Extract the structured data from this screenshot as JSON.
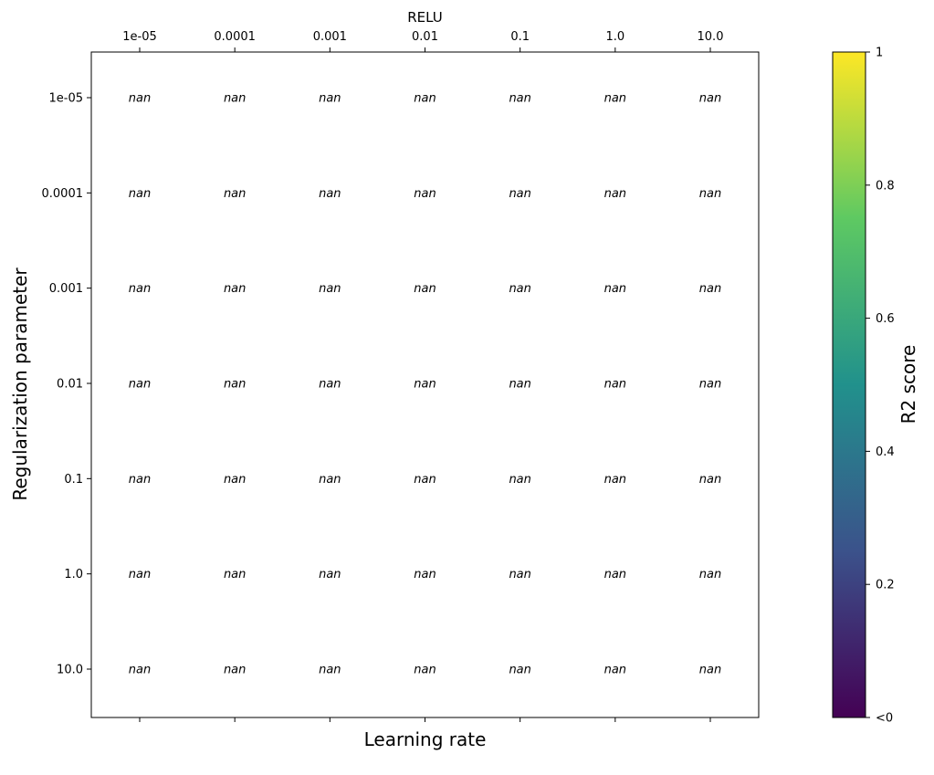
{
  "chart_data": {
    "type": "heatmap",
    "title": "RELU",
    "xlabel": "Learning rate",
    "ylabel": "Regularization parameter",
    "x_categories": [
      "1e-05",
      "0.0001",
      "0.001",
      "0.01",
      "0.1",
      "1.0",
      "10.0"
    ],
    "y_categories": [
      "1e-05",
      "0.0001",
      "0.001",
      "0.01",
      "0.1",
      "1.0",
      "10.0"
    ],
    "values": [
      [
        "nan",
        "nan",
        "nan",
        "nan",
        "nan",
        "nan",
        "nan"
      ],
      [
        "nan",
        "nan",
        "nan",
        "nan",
        "nan",
        "nan",
        "nan"
      ],
      [
        "nan",
        "nan",
        "nan",
        "nan",
        "nan",
        "nan",
        "nan"
      ],
      [
        "nan",
        "nan",
        "nan",
        "nan",
        "nan",
        "nan",
        "nan"
      ],
      [
        "nan",
        "nan",
        "nan",
        "nan",
        "nan",
        "nan",
        "nan"
      ],
      [
        "nan",
        "nan",
        "nan",
        "nan",
        "nan",
        "nan",
        "nan"
      ],
      [
        "nan",
        "nan",
        "nan",
        "nan",
        "nan",
        "nan",
        "nan"
      ]
    ],
    "x_tick_position": "top",
    "grid": false,
    "colorbar": {
      "label": "R2 score",
      "colormap": "viridis",
      "range": [
        0,
        1
      ],
      "ticks": [
        {
          "value": 0,
          "label": "<0"
        },
        {
          "value": 0.2,
          "label": "0.2"
        },
        {
          "value": 0.4,
          "label": "0.4"
        },
        {
          "value": 0.6,
          "label": "0.6"
        },
        {
          "value": 0.8,
          "label": "0.8"
        },
        {
          "value": 1,
          "label": "1"
        }
      ],
      "colors": [
        "#440154",
        "#3b528b",
        "#21918c",
        "#5ec962",
        "#fde725"
      ]
    }
  }
}
